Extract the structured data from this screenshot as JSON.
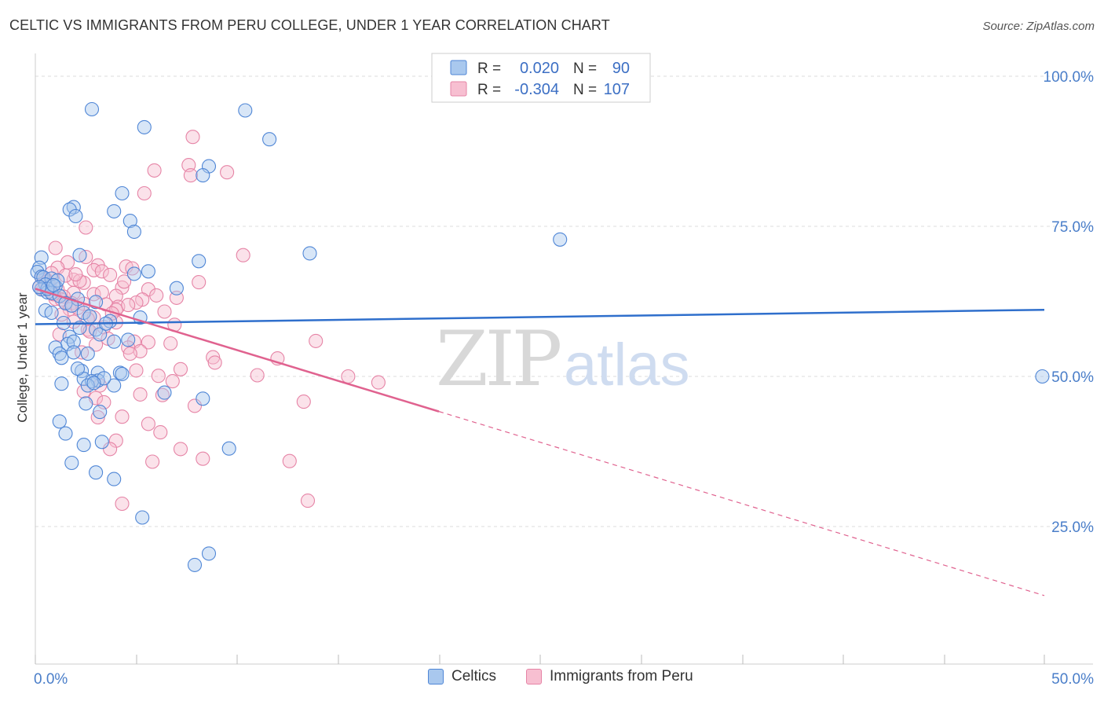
{
  "title": "CELTIC VS IMMIGRANTS FROM PERU COLLEGE, UNDER 1 YEAR CORRELATION CHART",
  "source": "Source: ZipAtlas.com",
  "watermark": {
    "zip": "ZIP",
    "atlas": "atlas"
  },
  "colors": {
    "blue_fill": "#a9c8ee",
    "blue_stroke": "#4f86d6",
    "blue_line": "#2f6fcc",
    "pink_fill": "#f7bfd1",
    "pink_stroke": "#e684a6",
    "pink_line": "#e0628f",
    "grid": "#dddddd",
    "tick_label": "#4a7ec9",
    "axis": "#cccccc"
  },
  "legend_top": {
    "rows": [
      {
        "r_label": "R =",
        "r_value": "0.020",
        "n_label": "N =",
        "n_value": "90",
        "series": "blue"
      },
      {
        "r_label": "R =",
        "r_value": "-0.304",
        "n_label": "N =",
        "n_value": "107",
        "series": "pink"
      }
    ]
  },
  "legend_bottom": [
    "Celtics",
    "Immigrants from Peru"
  ],
  "chart_data": {
    "type": "scatter",
    "title": "CELTIC VS IMMIGRANTS FROM PERU COLLEGE, UNDER 1 YEAR CORRELATION CHART",
    "xlabel": "",
    "ylabel": "College, Under 1 year",
    "xlim": [
      0,
      50
    ],
    "ylim": [
      0,
      105
    ],
    "x_tick_labels": [
      "0.0%",
      "50.0%"
    ],
    "y_tick_values": [
      25,
      50,
      75,
      100
    ],
    "y_tick_labels": [
      "25.0%",
      "50.0%",
      "75.0%",
      "100.0%"
    ],
    "grid": true,
    "series": [
      {
        "name": "Celtics",
        "color": "blue",
        "trend": {
          "x0": 0,
          "y0": 58.7,
          "x1": 50,
          "y1": 61.1,
          "dashed_from": null
        },
        "points": [
          [
            2.8,
            94.5
          ],
          [
            5.4,
            91.5
          ],
          [
            10.4,
            94.3
          ],
          [
            11.6,
            89.5
          ],
          [
            8.6,
            85
          ],
          [
            8.3,
            83.5
          ],
          [
            4.3,
            80.5
          ],
          [
            1.9,
            78.2
          ],
          [
            1.7,
            77.8
          ],
          [
            3.9,
            77.5
          ],
          [
            2.0,
            76.7
          ],
          [
            4.7,
            75.9
          ],
          [
            4.9,
            74.1
          ],
          [
            26.0,
            72.8
          ],
          [
            0.3,
            69.8
          ],
          [
            2.2,
            70.2
          ],
          [
            13.6,
            70.5
          ],
          [
            8.1,
            69.2
          ],
          [
            0.2,
            68.1
          ],
          [
            0.1,
            67.4
          ],
          [
            0.3,
            66.6
          ],
          [
            4.9,
            67.1
          ],
          [
            5.6,
            67.5
          ],
          [
            0.4,
            66.5
          ],
          [
            0.8,
            66.3
          ],
          [
            0.5,
            65.3
          ],
          [
            1.0,
            65.0
          ],
          [
            0.3,
            64.5
          ],
          [
            0.6,
            64.0
          ],
          [
            7.0,
            64.7
          ],
          [
            0.8,
            63.9
          ],
          [
            1.2,
            63.4
          ],
          [
            2.1,
            62.9
          ],
          [
            3.0,
            62.4
          ],
          [
            1.5,
            62.2
          ],
          [
            0.5,
            61.0
          ],
          [
            0.8,
            60.6
          ],
          [
            2.4,
            60.6
          ],
          [
            5.2,
            59.8
          ],
          [
            1.4,
            58.9
          ],
          [
            3.7,
            59.2
          ],
          [
            2.2,
            58.1
          ],
          [
            3.0,
            57.8
          ],
          [
            3.2,
            57.0
          ],
          [
            1.7,
            56.6
          ],
          [
            1.6,
            55.4
          ],
          [
            3.9,
            55.8
          ],
          [
            1.9,
            55.8
          ],
          [
            1.0,
            54.8
          ],
          [
            1.9,
            54.0
          ],
          [
            1.2,
            53.8
          ],
          [
            2.6,
            53.8
          ],
          [
            1.3,
            53.1
          ],
          [
            4.2,
            50.6
          ],
          [
            4.3,
            50.4
          ],
          [
            2.3,
            50.9
          ],
          [
            3.1,
            50.6
          ],
          [
            2.4,
            49.6
          ],
          [
            3.1,
            49.3
          ],
          [
            2.8,
            49.2
          ],
          [
            1.3,
            48.8
          ],
          [
            2.6,
            48.5
          ],
          [
            3.9,
            48.5
          ],
          [
            6.4,
            47.3
          ],
          [
            8.3,
            46.3
          ],
          [
            2.5,
            45.5
          ],
          [
            3.2,
            44.1
          ],
          [
            1.2,
            42.5
          ],
          [
            1.5,
            40.5
          ],
          [
            3.3,
            39.1
          ],
          [
            2.4,
            38.6
          ],
          [
            9.6,
            38.0
          ],
          [
            1.8,
            35.6
          ],
          [
            3.0,
            34.0
          ],
          [
            3.9,
            32.9
          ],
          [
            5.3,
            26.5
          ],
          [
            8.6,
            20.5
          ],
          [
            7.9,
            18.6
          ],
          [
            49.9,
            50.0
          ],
          [
            0.6,
            64.6
          ],
          [
            1.1,
            66.0
          ],
          [
            0.2,
            64.9
          ],
          [
            0.9,
            65.2
          ],
          [
            1.8,
            61.8
          ],
          [
            2.7,
            60.0
          ],
          [
            3.5,
            58.8
          ],
          [
            4.6,
            56.1
          ],
          [
            2.1,
            51.3
          ],
          [
            3.4,
            49.7
          ],
          [
            2.9,
            48.9
          ]
        ]
      },
      {
        "name": "Immigrants from Peru",
        "color": "pink",
        "trend": {
          "x0": 0,
          "y0": 64.6,
          "x1": 50,
          "y1": 13.5,
          "dashed_from": 20
        },
        "points": [
          [
            7.8,
            89.9
          ],
          [
            7.6,
            85.2
          ],
          [
            7.7,
            83.5
          ],
          [
            5.9,
            84.3
          ],
          [
            9.5,
            84.0
          ],
          [
            5.4,
            80.5
          ],
          [
            2.5,
            74.8
          ],
          [
            1.0,
            71.4
          ],
          [
            10.3,
            70.2
          ],
          [
            2.5,
            69.9
          ],
          [
            1.6,
            69.0
          ],
          [
            3.1,
            68.5
          ],
          [
            4.5,
            68.3
          ],
          [
            1.1,
            68.1
          ],
          [
            2.9,
            67.7
          ],
          [
            4.8,
            68.0
          ],
          [
            3.3,
            67.5
          ],
          [
            3.7,
            66.9
          ],
          [
            0.3,
            66.6
          ],
          [
            0.5,
            66.3
          ],
          [
            1.9,
            66.1
          ],
          [
            2.4,
            65.6
          ],
          [
            8.1,
            65.7
          ],
          [
            0.7,
            65.2
          ],
          [
            2.2,
            65.9
          ],
          [
            1.1,
            64.5
          ],
          [
            4.3,
            64.8
          ],
          [
            0.4,
            64.5
          ],
          [
            5.6,
            64.5
          ],
          [
            1.9,
            63.9
          ],
          [
            2.9,
            63.7
          ],
          [
            4.0,
            63.4
          ],
          [
            1.0,
            62.9
          ],
          [
            5.3,
            62.8
          ],
          [
            1.8,
            62.2
          ],
          [
            2.4,
            62.1
          ],
          [
            3.5,
            62.0
          ],
          [
            4.1,
            61.6
          ],
          [
            1.7,
            61.2
          ],
          [
            4.0,
            61.1
          ],
          [
            6.4,
            60.8
          ],
          [
            1.3,
            60.3
          ],
          [
            2.9,
            59.8
          ],
          [
            1.9,
            59.1
          ],
          [
            4.0,
            59.0
          ],
          [
            6.9,
            58.6
          ],
          [
            3.4,
            58.2
          ],
          [
            2.6,
            57.8
          ],
          [
            1.2,
            57.0
          ],
          [
            13.9,
            55.9
          ],
          [
            4.9,
            55.8
          ],
          [
            5.6,
            55.7
          ],
          [
            6.7,
            55.5
          ],
          [
            3.0,
            55.3
          ],
          [
            4.6,
            54.8
          ],
          [
            5.2,
            54.2
          ],
          [
            2.3,
            54.0
          ],
          [
            4.7,
            53.8
          ],
          [
            8.8,
            53.2
          ],
          [
            12.0,
            53.0
          ],
          [
            8.9,
            52.3
          ],
          [
            7.2,
            51.2
          ],
          [
            5.0,
            51.0
          ],
          [
            11.0,
            50.2
          ],
          [
            6.1,
            50.1
          ],
          [
            15.5,
            50.0
          ],
          [
            17.0,
            49.0
          ],
          [
            6.8,
            49.2
          ],
          [
            3.2,
            48.5
          ],
          [
            2.4,
            47.5
          ],
          [
            5.2,
            47.0
          ],
          [
            6.3,
            46.9
          ],
          [
            3.0,
            46.4
          ],
          [
            13.3,
            45.8
          ],
          [
            3.4,
            45.7
          ],
          [
            7.9,
            45.1
          ],
          [
            4.3,
            43.3
          ],
          [
            3.1,
            43.2
          ],
          [
            5.6,
            42.1
          ],
          [
            6.2,
            40.7
          ],
          [
            4.0,
            39.3
          ],
          [
            3.7,
            37.9
          ],
          [
            7.2,
            37.9
          ],
          [
            8.3,
            36.3
          ],
          [
            12.6,
            35.9
          ],
          [
            5.8,
            35.8
          ],
          [
            13.5,
            29.3
          ],
          [
            4.3,
            28.8
          ],
          [
            0.6,
            65.8
          ],
          [
            1.4,
            63.3
          ],
          [
            0.2,
            64.9
          ],
          [
            0.8,
            67.2
          ],
          [
            1.5,
            66.8
          ],
          [
            2.1,
            61.4
          ],
          [
            2.7,
            57.5
          ],
          [
            3.6,
            56.3
          ],
          [
            4.4,
            65.8
          ],
          [
            5.0,
            62.3
          ],
          [
            6.0,
            63.5
          ],
          [
            3.3,
            64.0
          ],
          [
            2.0,
            67.0
          ],
          [
            1.3,
            62.8
          ],
          [
            0.9,
            63.7
          ],
          [
            3.8,
            60.5
          ],
          [
            4.6,
            61.9
          ],
          [
            2.6,
            59.6
          ],
          [
            7.0,
            63.1
          ]
        ]
      }
    ]
  }
}
